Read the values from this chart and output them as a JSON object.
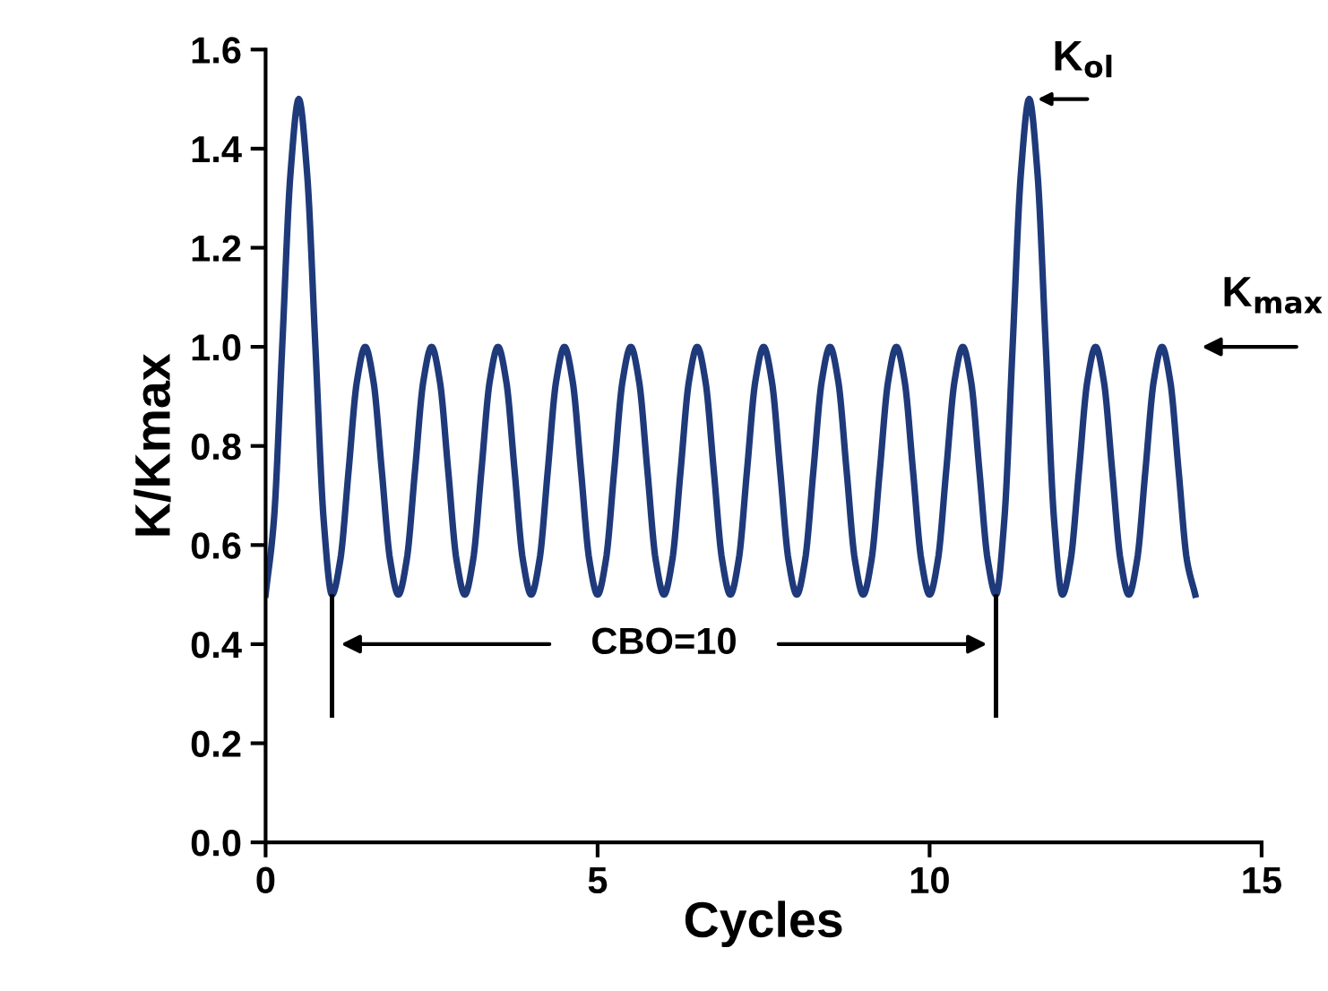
{
  "chart_data": {
    "type": "line",
    "xlabel": "Cycles",
    "ylabel": "K/Kmax",
    "x": [
      0,
      0.125,
      0.25,
      0.375,
      0.5,
      0.625,
      0.75,
      0.875,
      1,
      1.125,
      1.25,
      1.375,
      1.5,
      1.625,
      1.75,
      1.875,
      2,
      2.125,
      2.25,
      2.375,
      2.5,
      2.625,
      2.75,
      2.875,
      3,
      3.125,
      3.25,
      3.375,
      3.5,
      3.625,
      3.75,
      3.875,
      4,
      4.125,
      4.25,
      4.375,
      4.5,
      4.625,
      4.75,
      4.875,
      5,
      5.125,
      5.25,
      5.375,
      5.5,
      5.625,
      5.75,
      5.875,
      6,
      6.125,
      6.25,
      6.375,
      6.5,
      6.625,
      6.75,
      6.875,
      7,
      7.125,
      7.25,
      7.375,
      7.5,
      7.625,
      7.75,
      7.875,
      8,
      8.125,
      8.25,
      8.375,
      8.5,
      8.625,
      8.75,
      8.875,
      9,
      9.125,
      9.25,
      9.375,
      9.5,
      9.625,
      9.75,
      9.875,
      10,
      10.125,
      10.25,
      10.375,
      10.5,
      10.625,
      10.75,
      10.875,
      11,
      11.125,
      11.25,
      11.375,
      11.5,
      11.625,
      11.75,
      11.875,
      12,
      12.125,
      12.25,
      12.375,
      12.5,
      12.625,
      12.75,
      12.875,
      13,
      13.125,
      13.25,
      13.375,
      13.5,
      13.625,
      13.75,
      13.875,
      14
    ],
    "series": [
      {
        "color": "#1f3a7a",
        "values": [
          0.5,
          0.65,
          1.0,
          1.35,
          1.5,
          1.35,
          1.0,
          0.65,
          0.5,
          0.57,
          0.75,
          0.93,
          1.0,
          0.93,
          0.75,
          0.57,
          0.5,
          0.57,
          0.75,
          0.93,
          1.0,
          0.93,
          0.75,
          0.57,
          0.5,
          0.57,
          0.75,
          0.93,
          1.0,
          0.93,
          0.75,
          0.57,
          0.5,
          0.57,
          0.75,
          0.93,
          1.0,
          0.93,
          0.75,
          0.57,
          0.5,
          0.57,
          0.75,
          0.93,
          1.0,
          0.93,
          0.75,
          0.57,
          0.5,
          0.57,
          0.75,
          0.93,
          1.0,
          0.93,
          0.75,
          0.57,
          0.5,
          0.57,
          0.75,
          0.93,
          1.0,
          0.93,
          0.75,
          0.57,
          0.5,
          0.57,
          0.75,
          0.93,
          1.0,
          0.93,
          0.75,
          0.57,
          0.5,
          0.57,
          0.75,
          0.93,
          1.0,
          0.93,
          0.75,
          0.57,
          0.5,
          0.57,
          0.75,
          0.93,
          1.0,
          0.93,
          0.75,
          0.57,
          0.5,
          0.65,
          1.0,
          1.35,
          1.5,
          1.35,
          1.0,
          0.65,
          0.5,
          0.57,
          0.75,
          0.93,
          1.0,
          0.93,
          0.75,
          0.57,
          0.5,
          0.57,
          0.75,
          0.93,
          1.0,
          0.93,
          0.75,
          0.57,
          0.5
        ]
      }
    ],
    "xlim": [
      0,
      15
    ],
    "xticks": [
      0,
      5,
      10,
      15
    ],
    "ylim": [
      0,
      1.6
    ],
    "yticks": [
      {
        "value": 0,
        "label": "0.0"
      },
      0.2,
      0.4,
      0.6,
      0.8,
      {
        "value": 1,
        "label": "1.0"
      },
      1.2,
      1.4,
      1.6
    ],
    "grid": false,
    "legend": false,
    "marker": "none",
    "line_style": "solid",
    "annotations": [
      {
        "text": "K$_{ol}$",
        "x": 11.5,
        "y": 1.5
      },
      "K$_{max}$",
      "CBO=10"
    ]
  }
}
